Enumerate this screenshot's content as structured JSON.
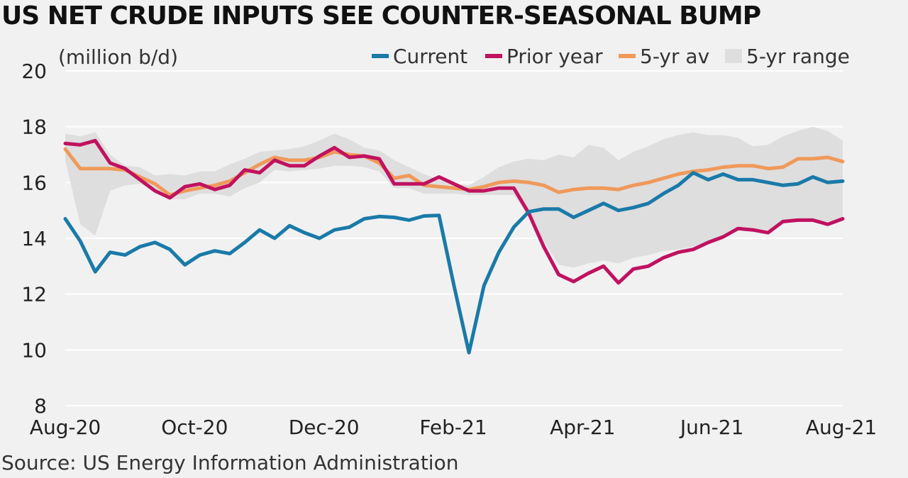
{
  "title": "US NET CRUDE INPUTS SEE COUNTER-SEASONAL BUMP",
  "source": "Source: US Energy Information Administration",
  "chart_data": {
    "type": "line",
    "ylabel": "(million b/d)",
    "ylim": [
      8,
      20
    ],
    "yticks": [
      8,
      10,
      12,
      14,
      16,
      18,
      20
    ],
    "xticks": [
      "Aug-20",
      "Oct-20",
      "Dec-20",
      "Feb-21",
      "Apr-21",
      "Jun-21",
      "Aug-21"
    ],
    "legend": [
      "Current",
      "Prior year",
      "5-yr av",
      "5-yr range"
    ],
    "legend_position": "top",
    "grid": "horizontal",
    "colors": {
      "current": "#1a7aa8",
      "prior_year": "#c0125f",
      "avg": "#f0995a",
      "range": "#dedede",
      "grid": "#ffffff",
      "background": "#f1f1f2"
    },
    "series": [
      {
        "name": "Current",
        "values": [
          14.7,
          13.9,
          12.8,
          13.5,
          13.4,
          13.7,
          13.85,
          13.6,
          13.05,
          13.4,
          13.55,
          13.45,
          13.85,
          14.3,
          14.0,
          14.45,
          14.2,
          14.0,
          14.3,
          14.4,
          14.7,
          14.78,
          14.75,
          14.65,
          14.8,
          14.82,
          12.3,
          9.9,
          12.3,
          13.5,
          14.4,
          14.95,
          15.05,
          15.05,
          14.75,
          15.0,
          15.25,
          15.0,
          15.1,
          15.25,
          15.6,
          15.9,
          16.35,
          16.1,
          16.3,
          16.1,
          16.1,
          16.0,
          15.9,
          15.95,
          16.2,
          16.0,
          16.05
        ]
      },
      {
        "name": "Prior year",
        "values": [
          17.4,
          17.35,
          17.5,
          16.7,
          16.5,
          16.1,
          15.7,
          15.45,
          15.85,
          15.95,
          15.75,
          15.9,
          16.45,
          16.35,
          16.8,
          16.6,
          16.6,
          16.95,
          17.25,
          16.9,
          16.95,
          16.85,
          15.95,
          15.95,
          15.95,
          16.2,
          15.95,
          15.7,
          15.7,
          15.8,
          15.8,
          14.9,
          13.7,
          12.7,
          12.45,
          12.75,
          13.0,
          12.4,
          12.9,
          13.0,
          13.3,
          13.5,
          13.6,
          13.85,
          14.05,
          14.35,
          14.3,
          14.2,
          14.6,
          14.65,
          14.65,
          14.5,
          14.7
        ]
      },
      {
        "name": "5-yr av",
        "values": [
          17.2,
          16.5,
          16.5,
          16.5,
          16.45,
          16.2,
          15.95,
          15.55,
          15.7,
          15.8,
          15.9,
          16.05,
          16.35,
          16.65,
          16.9,
          16.8,
          16.8,
          16.9,
          17.1,
          17.0,
          16.95,
          16.7,
          16.15,
          16.25,
          15.9,
          15.85,
          15.8,
          15.75,
          15.85,
          16.0,
          16.05,
          16.0,
          15.9,
          15.65,
          15.75,
          15.8,
          15.8,
          15.75,
          15.9,
          16.0,
          16.15,
          16.3,
          16.4,
          16.45,
          16.55,
          16.6,
          16.6,
          16.5,
          16.55,
          16.85,
          16.85,
          16.9,
          16.75
        ]
      },
      {
        "name": "5-yr range",
        "type": "band",
        "low": [
          16.8,
          14.5,
          14.1,
          15.7,
          15.9,
          15.95,
          15.7,
          15.4,
          15.4,
          15.6,
          15.6,
          15.5,
          15.8,
          16.0,
          16.45,
          16.4,
          16.45,
          16.5,
          16.6,
          16.6,
          16.55,
          16.4,
          15.8,
          15.8,
          15.6,
          15.6,
          15.6,
          15.55,
          15.55,
          15.55,
          15.55,
          14.8,
          13.9,
          13.05,
          12.95,
          13.1,
          13.2,
          13.1,
          13.3,
          13.4,
          13.55,
          13.6,
          13.7,
          13.9,
          14.1,
          14.3,
          14.35,
          14.3,
          14.55,
          14.65,
          14.65,
          14.6,
          14.7
        ],
        "high": [
          17.75,
          17.65,
          17.8,
          17.0,
          16.6,
          16.55,
          16.25,
          16.3,
          16.25,
          16.4,
          16.4,
          16.65,
          16.85,
          17.1,
          17.15,
          17.2,
          17.3,
          17.5,
          17.75,
          17.55,
          17.25,
          17.15,
          16.8,
          16.55,
          16.3,
          16.1,
          15.95,
          15.9,
          16.2,
          16.55,
          16.75,
          16.85,
          16.8,
          17.0,
          16.9,
          17.35,
          17.25,
          16.8,
          17.1,
          17.3,
          17.55,
          17.7,
          17.8,
          17.7,
          17.7,
          17.6,
          17.3,
          17.35,
          17.65,
          17.85,
          18.0,
          17.85,
          17.5
        ]
      }
    ]
  }
}
